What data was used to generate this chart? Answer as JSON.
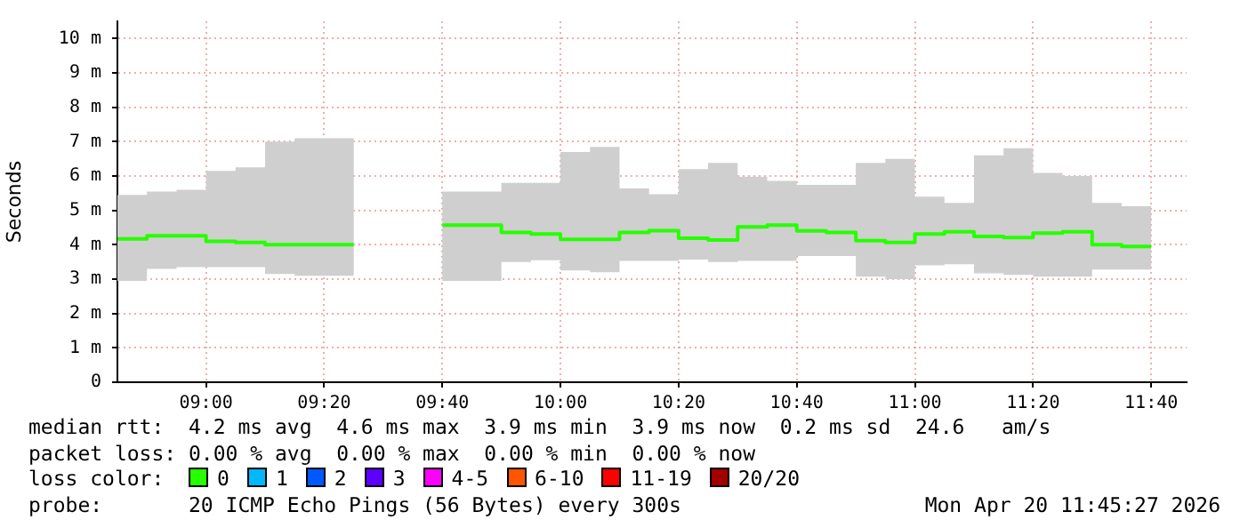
{
  "chart_data": {
    "type": "step",
    "ylabel": "Seconds",
    "legend_title": "loss color:",
    "legend": "bottom",
    "grid": true,
    "x": [
      "2026-04-20T08:45",
      "2026-04-20T08:50",
      "2026-04-20T08:55",
      "2026-04-20T09:00",
      "2026-04-20T09:05",
      "2026-04-20T09:10",
      "2026-04-20T09:15",
      "2026-04-20T09:20",
      "2026-04-20T09:25",
      "2026-04-20T09:30",
      "2026-04-20T09:35",
      "2026-04-20T09:40",
      "2026-04-20T09:45",
      "2026-04-20T09:50",
      "2026-04-20T09:55",
      "2026-04-20T10:00",
      "2026-04-20T10:05",
      "2026-04-20T10:10",
      "2026-04-20T10:15",
      "2026-04-20T10:20",
      "2026-04-20T10:25",
      "2026-04-20T10:30",
      "2026-04-20T10:35",
      "2026-04-20T10:40",
      "2026-04-20T10:45",
      "2026-04-20T10:50",
      "2026-04-20T10:55",
      "2026-04-20T11:00",
      "2026-04-20T11:05",
      "2026-04-20T11:10",
      "2026-04-20T11:15",
      "2026-04-20T11:20",
      "2026-04-20T11:25",
      "2026-04-20T11:30",
      "2026-04-20T11:35",
      "2026-04-20T11:40"
    ],
    "series": [
      {
        "name": "0",
        "color": "#26ff00",
        "values": [
          4.17,
          4.26,
          4.26,
          4.1,
          4.07,
          4.0,
          4.0,
          4.0,
          null,
          null,
          null,
          4.57,
          4.57,
          4.36,
          4.31,
          4.16,
          4.16,
          4.36,
          4.41,
          4.19,
          4.14,
          4.52,
          4.57,
          4.4,
          4.36,
          4.12,
          4.07,
          4.31,
          4.38,
          4.24,
          4.21,
          4.34,
          4.38,
          4.0,
          3.95,
          3.95
        ],
        "lower": [
          2.95,
          3.3,
          3.35,
          3.35,
          3.35,
          3.15,
          3.1,
          3.1,
          null,
          null,
          null,
          2.95,
          2.95,
          3.5,
          3.55,
          3.25,
          3.2,
          3.53,
          3.53,
          3.57,
          3.5,
          3.53,
          3.53,
          3.67,
          3.67,
          3.07,
          3.0,
          3.4,
          3.43,
          3.17,
          3.12,
          3.07,
          3.07,
          3.28,
          3.28,
          3.28
        ],
        "upper": [
          5.45,
          5.55,
          5.6,
          6.15,
          6.25,
          7.0,
          7.1,
          7.1,
          null,
          null,
          null,
          5.55,
          5.55,
          5.8,
          5.8,
          6.7,
          6.85,
          5.64,
          5.47,
          6.2,
          6.38,
          5.98,
          5.86,
          5.74,
          5.74,
          6.38,
          6.5,
          5.4,
          5.22,
          6.6,
          6.81,
          6.09,
          6.0,
          5.22,
          5.12,
          5.12
        ]
      },
      {
        "name": "1",
        "color": "#00b8ff",
        "values": [
          null,
          null,
          null,
          null,
          null,
          null,
          null,
          null,
          null,
          null,
          null,
          null,
          null,
          null,
          null,
          null,
          null,
          null,
          null,
          null,
          null,
          null,
          null,
          null,
          null,
          null,
          null,
          null,
          null,
          null,
          null,
          null,
          null,
          null,
          null,
          null
        ]
      },
      {
        "name": "2",
        "color": "#0059ff",
        "values": [
          null,
          null,
          null,
          null,
          null,
          null,
          null,
          null,
          null,
          null,
          null,
          null,
          null,
          null,
          null,
          null,
          null,
          null,
          null,
          null,
          null,
          null,
          null,
          null,
          null,
          null,
          null,
          null,
          null,
          null,
          null,
          null,
          null,
          null,
          null,
          null
        ]
      },
      {
        "name": "3",
        "color": "#5e00ff",
        "values": [
          null,
          null,
          null,
          null,
          null,
          null,
          null,
          null,
          null,
          null,
          null,
          null,
          null,
          null,
          null,
          null,
          null,
          null,
          null,
          null,
          null,
          null,
          null,
          null,
          null,
          null,
          null,
          null,
          null,
          null,
          null,
          null,
          null,
          null,
          null,
          null
        ]
      },
      {
        "name": "4-5",
        "color": "#ff00ff",
        "values": [
          null,
          null,
          null,
          null,
          null,
          null,
          null,
          null,
          null,
          null,
          null,
          null,
          null,
          null,
          null,
          null,
          null,
          null,
          null,
          null,
          null,
          null,
          null,
          null,
          null,
          null,
          null,
          null,
          null,
          null,
          null,
          null,
          null,
          null,
          null,
          null
        ]
      },
      {
        "name": "6-10",
        "color": "#ff5500",
        "values": [
          null,
          null,
          null,
          null,
          null,
          null,
          null,
          null,
          null,
          null,
          null,
          null,
          null,
          null,
          null,
          null,
          null,
          null,
          null,
          null,
          null,
          null,
          null,
          null,
          null,
          null,
          null,
          null,
          null,
          null,
          null,
          null,
          null,
          null,
          null,
          null
        ]
      },
      {
        "name": "11-19",
        "color": "#ff0000",
        "values": [
          null,
          null,
          null,
          null,
          null,
          null,
          null,
          null,
          null,
          null,
          null,
          null,
          null,
          null,
          null,
          null,
          null,
          null,
          null,
          null,
          null,
          null,
          null,
          null,
          null,
          null,
          null,
          null,
          null,
          null,
          null,
          null,
          null,
          null,
          null,
          null
        ]
      },
      {
        "name": "20/20",
        "color": "#a10000",
        "values": [
          null,
          null,
          null,
          null,
          null,
          null,
          null,
          null,
          null,
          null,
          null,
          null,
          null,
          null,
          null,
          null,
          null,
          null,
          null,
          null,
          null,
          null,
          null,
          null,
          null,
          null,
          null,
          null,
          null,
          null,
          null,
          null,
          null,
          null,
          null,
          null
        ]
      }
    ],
    "xlim": [
      "2026-04-20T08:45",
      "2026-04-20T11:46"
    ],
    "xticks": [
      {
        "value": "2026-04-20T09:00",
        "label": "09:00"
      },
      {
        "value": "2026-04-20T09:20",
        "label": "09:20"
      },
      {
        "value": "2026-04-20T09:40",
        "label": "09:40"
      },
      {
        "value": "2026-04-20T10:00",
        "label": "10:00"
      },
      {
        "value": "2026-04-20T10:20",
        "label": "10:20"
      },
      {
        "value": "2026-04-20T10:40",
        "label": "10:40"
      },
      {
        "value": "2026-04-20T11:00",
        "label": "11:00"
      },
      {
        "value": "2026-04-20T11:20",
        "label": "11:20"
      },
      {
        "value": "2026-04-20T11:40",
        "label": "11:40"
      }
    ],
    "ylim": [
      0,
      10.5
    ],
    "yticks": [
      0,
      {
        "value": 1,
        "label": "1 m"
      },
      {
        "value": 2,
        "label": "2 m"
      },
      {
        "value": 3,
        "label": "3 m"
      },
      {
        "value": 4,
        "label": "4 m"
      },
      {
        "value": 5,
        "label": "5 m"
      },
      {
        "value": 6,
        "label": "6 m"
      },
      {
        "value": 7,
        "label": "7 m"
      },
      {
        "value": 8,
        "label": "8 m"
      },
      {
        "value": 9,
        "label": "9 m"
      },
      {
        "value": 10,
        "label": "10 m"
      }
    ],
    "annotations": [
      "median rtt:  4.2 ms avg  4.6 ms max  3.9 ms min  3.9 ms now  0.2 ms sd  24.6   am/s",
      "packet loss: 0.00 % avg  0.00 % max  0.00 % min  0.00 % now",
      "probe:       20 ICMP Echo Pings (56 Bytes) every 300s",
      "Mon Apr 20 11:45:27 2026"
    ]
  }
}
